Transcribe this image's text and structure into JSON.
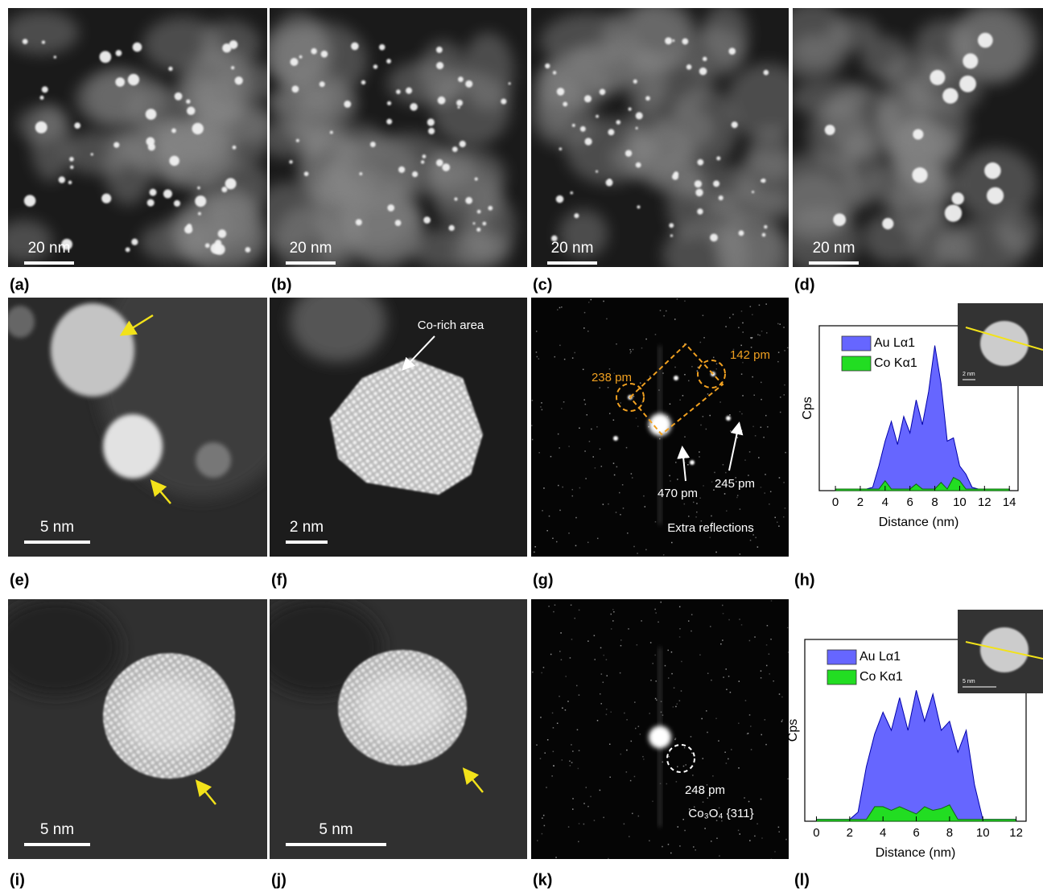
{
  "panels": [
    {
      "label": "(a)",
      "scale_bar": "20 nm"
    },
    {
      "label": "(b)",
      "scale_bar": "20 nm"
    },
    {
      "label": "(c)",
      "scale_bar": "20 nm"
    },
    {
      "label": "(d)",
      "scale_bar": "20 nm"
    },
    {
      "label": "(e)",
      "scale_bar": "5 nm"
    },
    {
      "label": "(f)",
      "scale_bar": "2 nm",
      "annotations": [
        "Co-rich area"
      ]
    },
    {
      "label": "(g)",
      "annotations": [
        "238 pm",
        "142 pm",
        "470 pm",
        "245 pm",
        "Extra reflections"
      ]
    },
    {
      "label": "(h)"
    },
    {
      "label": "(i)",
      "scale_bar": "5 nm"
    },
    {
      "label": "(j)",
      "scale_bar": "5 nm"
    },
    {
      "label": "(k)",
      "annotations": [
        "248 pm",
        "Co₃O₄ {311}"
      ]
    },
    {
      "label": "(l)"
    }
  ],
  "chart_data": [
    {
      "type": "area",
      "x_label": "Distance (nm)",
      "y_label": "Cps",
      "inset_scale_bar": "2 nm",
      "x": [
        0,
        0.5,
        1,
        1.5,
        2,
        2.5,
        3,
        3.5,
        4,
        4.5,
        5,
        5.5,
        6,
        6.5,
        7,
        7.5,
        8,
        8.5,
        9,
        9.5,
        10,
        10.5,
        11,
        11.5,
        12,
        12.5,
        13,
        13.5,
        14
      ],
      "series": [
        {
          "name": "Au Lα1",
          "color": "#6666ff",
          "values": [
            1,
            1,
            1,
            1,
            1,
            1,
            2,
            15,
            30,
            42,
            28,
            45,
            35,
            55,
            40,
            60,
            88,
            65,
            30,
            32,
            15,
            10,
            2,
            1,
            1,
            1,
            1,
            1,
            1
          ]
        },
        {
          "name": "Co Kα1",
          "color": "#22dd22",
          "values": [
            1,
            1,
            1,
            1,
            1,
            1,
            1,
            1,
            6,
            1,
            1,
            1,
            1,
            4,
            1,
            1,
            1,
            5,
            1,
            8,
            6,
            1,
            1,
            1,
            1,
            1,
            1,
            1,
            1
          ]
        }
      ],
      "xlim": [
        -1.3,
        14.7
      ],
      "xticks": [
        0,
        2,
        4,
        6,
        8,
        10,
        12,
        14
      ],
      "ylim": [
        0,
        100
      ]
    },
    {
      "type": "area",
      "x_label": "Distance (nm)",
      "y_label": "Cps",
      "inset_scale_bar": "5 nm",
      "x": [
        0,
        0.5,
        1,
        1.5,
        2,
        2.5,
        3,
        3.5,
        4,
        4.5,
        5,
        5.5,
        6,
        6.5,
        7,
        7.5,
        8,
        8.5,
        9,
        9.5,
        10,
        10.5,
        11,
        11.5,
        12
      ],
      "series": [
        {
          "name": "Au Lα1",
          "color": "#6666ff",
          "values": [
            1,
            1,
            1,
            1,
            1,
            5,
            30,
            48,
            60,
            50,
            68,
            50,
            72,
            55,
            70,
            50,
            55,
            38,
            50,
            20,
            1,
            1,
            1,
            1,
            1
          ]
        },
        {
          "name": "Co Kα1",
          "color": "#22dd22",
          "values": [
            1,
            1,
            1,
            1,
            1,
            1,
            1,
            8,
            8,
            6,
            8,
            6,
            4,
            8,
            6,
            7,
            9,
            1,
            1,
            1,
            1,
            1,
            1,
            1,
            1
          ]
        }
      ],
      "xlim": [
        -0.7,
        12.6
      ],
      "xticks": [
        0,
        2,
        4,
        6,
        8,
        10,
        12
      ],
      "ylim": [
        0,
        100
      ]
    }
  ]
}
